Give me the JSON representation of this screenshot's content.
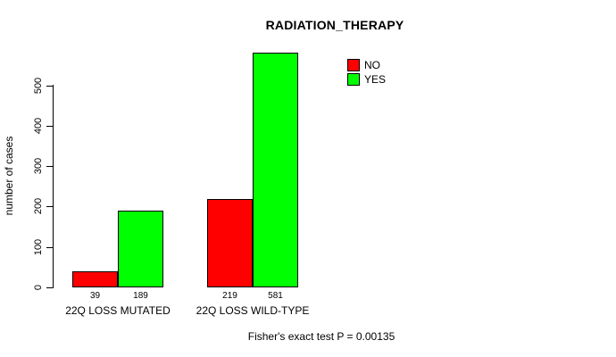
{
  "chart_data": {
    "type": "bar",
    "title": "RADIATION_THERAPY",
    "xlabel": "",
    "ylabel": "number of cases",
    "categories": [
      "22Q LOSS MUTATED",
      "22Q LOSS WILD-TYPE"
    ],
    "series": [
      {
        "name": "NO",
        "color": "#ff0000",
        "values": [
          39,
          219
        ]
      },
      {
        "name": "YES",
        "color": "#00ff00",
        "values": [
          189,
          581
        ]
      }
    ],
    "bar_value_labels": [
      [
        39,
        189
      ],
      [
        219,
        581
      ]
    ],
    "yticks": [
      0,
      100,
      200,
      300,
      400,
      500
    ],
    "ylim": [
      0,
      581
    ],
    "grid": false,
    "legend_position": "top-right",
    "annotation": "Fisher's exact test P = 0.00135",
    "background_color": "#ffffff",
    "bar_border_color": "#000000"
  }
}
